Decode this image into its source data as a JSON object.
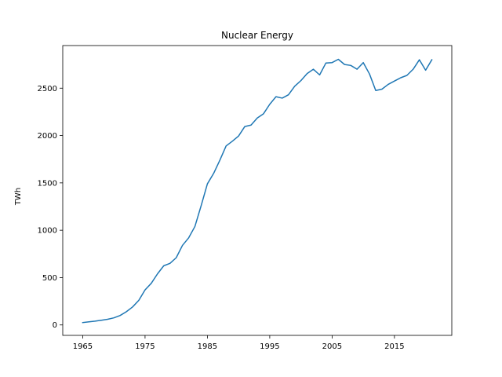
{
  "chart_data": {
    "type": "line",
    "title": "Nuclear Energy",
    "xlabel": "",
    "ylabel": "TWh",
    "xlim": [
      1961.8,
      2024.2
    ],
    "ylim": [
      -110,
      2950
    ],
    "xticks": [
      1965,
      1975,
      1985,
      1995,
      2005,
      2015
    ],
    "yticks": [
      0,
      500,
      1000,
      1500,
      2000,
      2500
    ],
    "grid": false,
    "color": "#1f77b4",
    "series": [
      {
        "x": [
          1965,
          1966,
          1967,
          1968,
          1969,
          1970,
          1971,
          1972,
          1973,
          1974,
          1975,
          1976,
          1977,
          1978,
          1979,
          1980,
          1981,
          1982,
          1983,
          1984,
          1985,
          1986,
          1987,
          1988,
          1989,
          1990,
          1991,
          1992,
          1993,
          1994,
          1995,
          1996,
          1997,
          1998,
          1999,
          2000,
          2001,
          2002,
          2003,
          2004,
          2005,
          2006,
          2007,
          2008,
          2009,
          2010,
          2011,
          2012,
          2013,
          2014,
          2015,
          2016,
          2017,
          2018,
          2019,
          2020,
          2021
        ],
        "values": [
          25,
          33,
          40,
          50,
          60,
          75,
          100,
          140,
          190,
          260,
          370,
          440,
          540,
          625,
          650,
          710,
          840,
          920,
          1040,
          1260,
          1490,
          1600,
          1740,
          1890,
          1940,
          1995,
          2095,
          2110,
          2185,
          2230,
          2330,
          2410,
          2395,
          2430,
          2520,
          2580,
          2655,
          2700,
          2640,
          2765,
          2770,
          2805,
          2750,
          2740,
          2700,
          2770,
          2650,
          2475,
          2490,
          2540,
          2575,
          2610,
          2635,
          2700,
          2800,
          2690,
          2800
        ]
      }
    ]
  }
}
